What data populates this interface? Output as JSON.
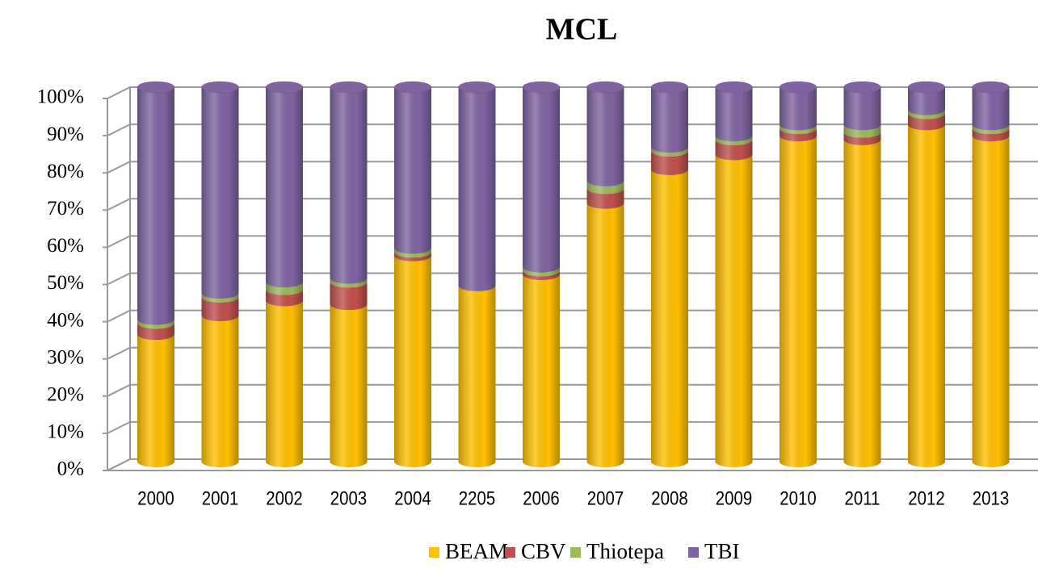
{
  "chart_data": {
    "type": "bar",
    "stacked": true,
    "title": "MCL",
    "categories": [
      "2000",
      "2001",
      "2002",
      "2003",
      "2004",
      "2205",
      "2006",
      "2007",
      "2008",
      "2009",
      "2010",
      "2011",
      "2012",
      "2013"
    ],
    "series": [
      {
        "name": "BEAM",
        "color": "#ffc000",
        "values": [
          34,
          39,
          43,
          42,
          55,
          47,
          50,
          69,
          78,
          82,
          87,
          86,
          90,
          87
        ]
      },
      {
        "name": "CBV",
        "color": "#c0504d",
        "values": [
          3,
          5,
          3,
          6,
          1,
          0,
          1,
          4,
          5,
          4,
          2,
          2,
          3,
          2
        ]
      },
      {
        "name": "Thiotepa",
        "color": "#9bbb59",
        "values": [
          1,
          1,
          2,
          1,
          1,
          0,
          1,
          2,
          1,
          1,
          1,
          2,
          1,
          1
        ]
      },
      {
        "name": "TBI",
        "color": "#8064a2",
        "values": [
          62,
          55,
          52,
          51,
          43,
          53,
          48,
          25,
          16,
          13,
          10,
          10,
          6,
          10
        ]
      }
    ],
    "ylim": [
      0,
      100
    ],
    "yticks": [
      {
        "value": 0,
        "label": "0%"
      },
      {
        "value": 10,
        "label": "10%"
      },
      {
        "value": 20,
        "label": "20%"
      },
      {
        "value": 30,
        "label": "30%"
      },
      {
        "value": 40,
        "label": "40%"
      },
      {
        "value": 50,
        "label": "50%"
      },
      {
        "value": 60,
        "label": "60%"
      },
      {
        "value": 70,
        "label": "70%"
      },
      {
        "value": 80,
        "label": "80%"
      },
      {
        "value": 90,
        "label": "90%"
      },
      {
        "value": 100,
        "label": "100%"
      }
    ],
    "grid": true,
    "legend": "bottom"
  }
}
